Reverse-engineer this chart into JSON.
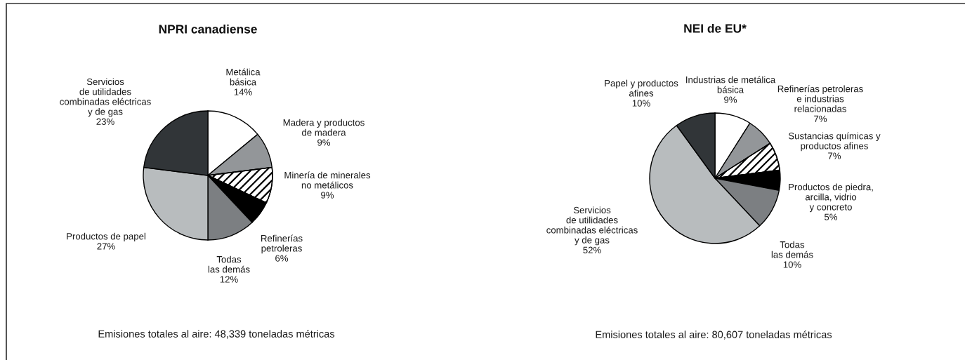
{
  "chart_data": [
    {
      "type": "pie",
      "title": "NPRI canadiense",
      "categories": [
        "Metálica\nbásica",
        "Madera y productos\nde madera",
        "Minería de minerales\nno metálicos",
        "Refinerías\npetroleras",
        "Todas\nlas demás",
        "Productos de papel",
        "Servicios\nde utilidades\ncombinadas eléctricas\ny de gas"
      ],
      "values": [
        14,
        9,
        9,
        6,
        12,
        27,
        23
      ],
      "value_labels": [
        "14%",
        "9%",
        "9%",
        "6%",
        "12%",
        "27%",
        "23%"
      ],
      "colors": [
        "#ffffff",
        "#939699",
        "#ffffff",
        "#000000",
        "#7c7f82",
        "#b8bcbe",
        "#313538"
      ],
      "annotations": [
        "Emisiones totales al aire: 48,339 toneladas métricas"
      ]
    },
    {
      "type": "pie",
      "title": "NEI de EU*",
      "categories": [
        "Industrias de metálica\nbásica",
        "Refinerías petroleras\ne industrias\nrelacionadas",
        "Sustancias químicas y\nproductos afines",
        "Productos de piedra,\narcilla, vidrio\ny concreto",
        "Todas\nlas demás",
        "Servicios\nde utilidades\ncombinadas eléctricas\ny de gas",
        "Papel y productos\nafines"
      ],
      "values": [
        9,
        7,
        7,
        5,
        10,
        52,
        10
      ],
      "value_labels": [
        "9%",
        "7%",
        "7%",
        "5%",
        "10%",
        "52%",
        "10%"
      ],
      "colors": [
        "#ffffff",
        "#939699",
        "#ffffff",
        "#000000",
        "#7c7f82",
        "#b8bcbe",
        "#313538"
      ],
      "annotations": [
        "Emisiones totales al aire: 80,607 toneladas métricas"
      ]
    }
  ]
}
